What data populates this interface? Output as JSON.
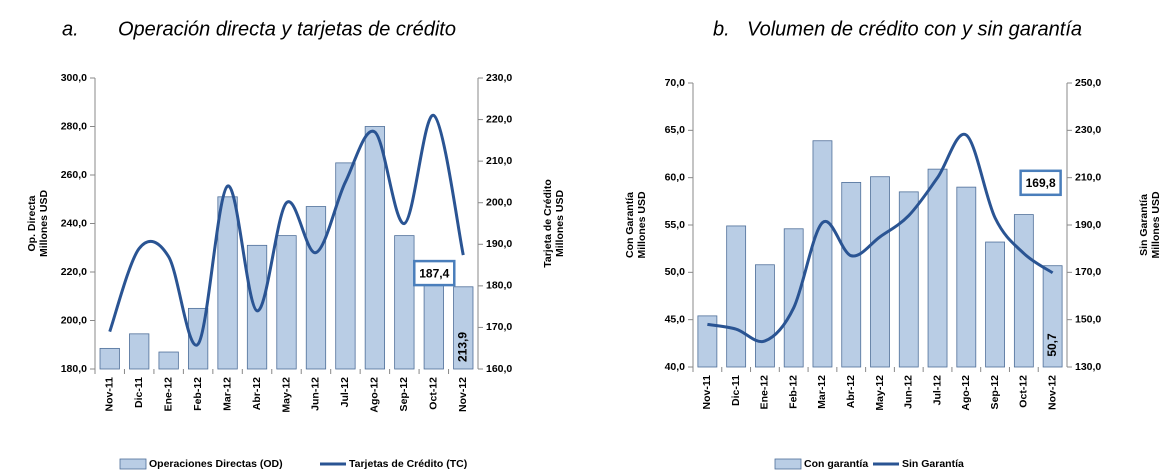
{
  "chart_data": [
    {
      "type": "combo",
      "label": "a.",
      "title": "Operación directa y tarjetas de crédito",
      "categories": [
        "Nov-11",
        "Dic-11",
        "Ene-12",
        "Feb-12",
        "Mar-12",
        "Abr-12",
        "May-12",
        "Jun-12",
        "Jul-12",
        "Ago-12",
        "Sep-12",
        "Oct-12",
        "Nov-12"
      ],
      "ylabel": [
        "Op. Directa",
        "Millones USD"
      ],
      "y2label": [
        "Tarjeta de Crédito",
        "Millones USD"
      ],
      "ylim": [
        180,
        300
      ],
      "yticks": [
        {
          "value": 180,
          "label": "180,0"
        },
        {
          "value": 200,
          "label": "200,0"
        },
        {
          "value": 220,
          "label": "220,0"
        },
        {
          "value": 240,
          "label": "240,0"
        },
        {
          "value": 260,
          "label": "260,0"
        },
        {
          "value": 280,
          "label": "280,0"
        },
        {
          "value": 300,
          "label": "300,0"
        }
      ],
      "y2lim": [
        160,
        230
      ],
      "y2ticks": [
        {
          "value": 160,
          "label": "160,0"
        },
        {
          "value": 170,
          "label": "170,0"
        },
        {
          "value": 180,
          "label": "180,0"
        },
        {
          "value": 190,
          "label": "190,0"
        },
        {
          "value": 200,
          "label": "200,0"
        },
        {
          "value": 210,
          "label": "210,0"
        },
        {
          "value": 220,
          "label": "220,0"
        },
        {
          "value": 230,
          "label": "230,0"
        }
      ],
      "series": [
        {
          "name": "Operaciones Directas (OD)",
          "kind": "bar",
          "color": "#b9cde5",
          "values": [
            188.5,
            194.5,
            187,
            205,
            251,
            231,
            235,
            247,
            265,
            280,
            235,
            222,
            213.9
          ],
          "value_labels": [
            null,
            null,
            null,
            null,
            null,
            null,
            null,
            null,
            null,
            null,
            null,
            null,
            "213,9"
          ]
        },
        {
          "name": "Tarjetas de Crédito (TC)",
          "kind": "line",
          "axis": "y2",
          "color": "#2a5493",
          "values": [
            169,
            189,
            187,
            166,
            204,
            174,
            200,
            188,
            205,
            217,
            195,
            221,
            187.4
          ],
          "value_labels": [
            null,
            null,
            null,
            null,
            null,
            null,
            null,
            null,
            null,
            null,
            null,
            null,
            "187,4"
          ]
        }
      ]
    },
    {
      "type": "combo",
      "label": "b.",
      "title": "Volumen de crédito con y sin garantía",
      "categories": [
        "Nov-11",
        "Dic-11",
        "Ene-12",
        "Feb-12",
        "Mar-12",
        "Abr-12",
        "May-12",
        "Jun-12",
        "Jul-12",
        "Ago-12",
        "Sep-12",
        "Oct-12",
        "Nov-12"
      ],
      "ylabel": [
        "Con Garantía",
        "Millones USD"
      ],
      "y2label": [
        "Sin Garantía",
        "Millones USD"
      ],
      "ylim": [
        40,
        70
      ],
      "yticks": [
        {
          "value": 40,
          "label": "40,0"
        },
        {
          "value": 45,
          "label": "45,0"
        },
        {
          "value": 50,
          "label": "50,0"
        },
        {
          "value": 55,
          "label": "55,0"
        },
        {
          "value": 60,
          "label": "60,0"
        },
        {
          "value": 65,
          "label": "65,0"
        },
        {
          "value": 70,
          "label": "70,0"
        }
      ],
      "y2lim": [
        130,
        250
      ],
      "y2ticks": [
        {
          "value": 130,
          "label": "130,0"
        },
        {
          "value": 150,
          "label": "150,0"
        },
        {
          "value": 170,
          "label": "170,0"
        },
        {
          "value": 190,
          "label": "190,0"
        },
        {
          "value": 210,
          "label": "210,0"
        },
        {
          "value": 230,
          "label": "230,0"
        },
        {
          "value": 250,
          "label": "250,0"
        }
      ],
      "series": [
        {
          "name": "Con garantía",
          "kind": "bar",
          "color": "#b9cde5",
          "values": [
            45.4,
            54.9,
            50.8,
            54.6,
            63.9,
            59.5,
            60.1,
            58.5,
            60.9,
            59.0,
            53.2,
            56.1,
            50.7
          ],
          "value_labels": [
            null,
            null,
            null,
            null,
            null,
            null,
            null,
            null,
            null,
            null,
            null,
            null,
            "50,7"
          ]
        },
        {
          "name": "Sin Garantía",
          "kind": "line",
          "axis": "y2",
          "color": "#2a5493",
          "values": [
            148,
            146,
            141,
            155,
            191,
            177,
            185,
            194,
            210,
            228,
            193,
            178,
            169.8
          ],
          "value_labels": [
            null,
            null,
            null,
            null,
            null,
            null,
            null,
            null,
            null,
            null,
            null,
            null,
            "169,8"
          ]
        }
      ]
    }
  ]
}
